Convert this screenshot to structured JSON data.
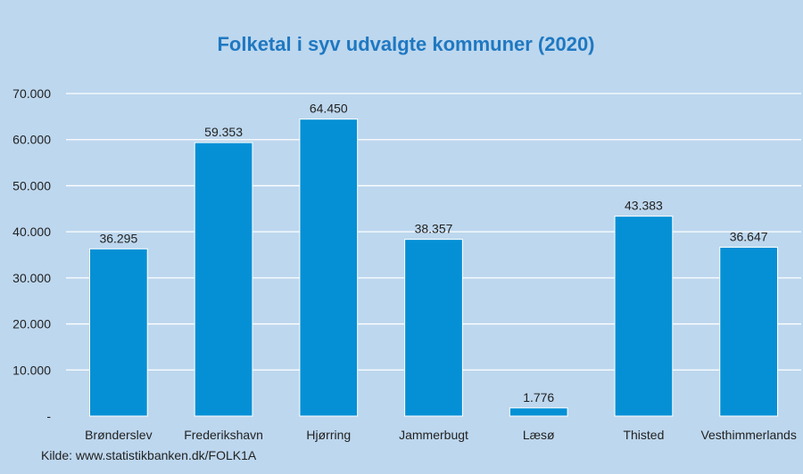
{
  "chart_data": {
    "type": "bar",
    "title": "Folketal i syv udvalgte kommuner (2020)",
    "categories": [
      "Brønderslev",
      "Frederikshavn",
      "Hjørring",
      "Jammerbugt",
      "Læsø",
      "Thisted",
      "Vesthimmerlands"
    ],
    "values": [
      36295,
      59353,
      64450,
      38357,
      1776,
      43383,
      36647
    ],
    "data_labels": [
      "36.295",
      "59.353",
      "64.450",
      "38.357",
      "1.776",
      "43.383",
      "36.647"
    ],
    "y_ticks": [
      0,
      10000,
      20000,
      30000,
      40000,
      50000,
      60000,
      70000
    ],
    "y_tick_labels": [
      "-",
      "10.000",
      "20.000",
      "30.000",
      "40.000",
      "50.000",
      "60.000",
      "70.000"
    ],
    "ylim": [
      0,
      70000
    ],
    "grid": true,
    "legend": "none",
    "bar_color": "#0590d6",
    "title_color": "#1f78c1",
    "background_color": "#bdd7ee",
    "source": "Kilde: www.statistikbanken.dk/FOLK1A"
  }
}
